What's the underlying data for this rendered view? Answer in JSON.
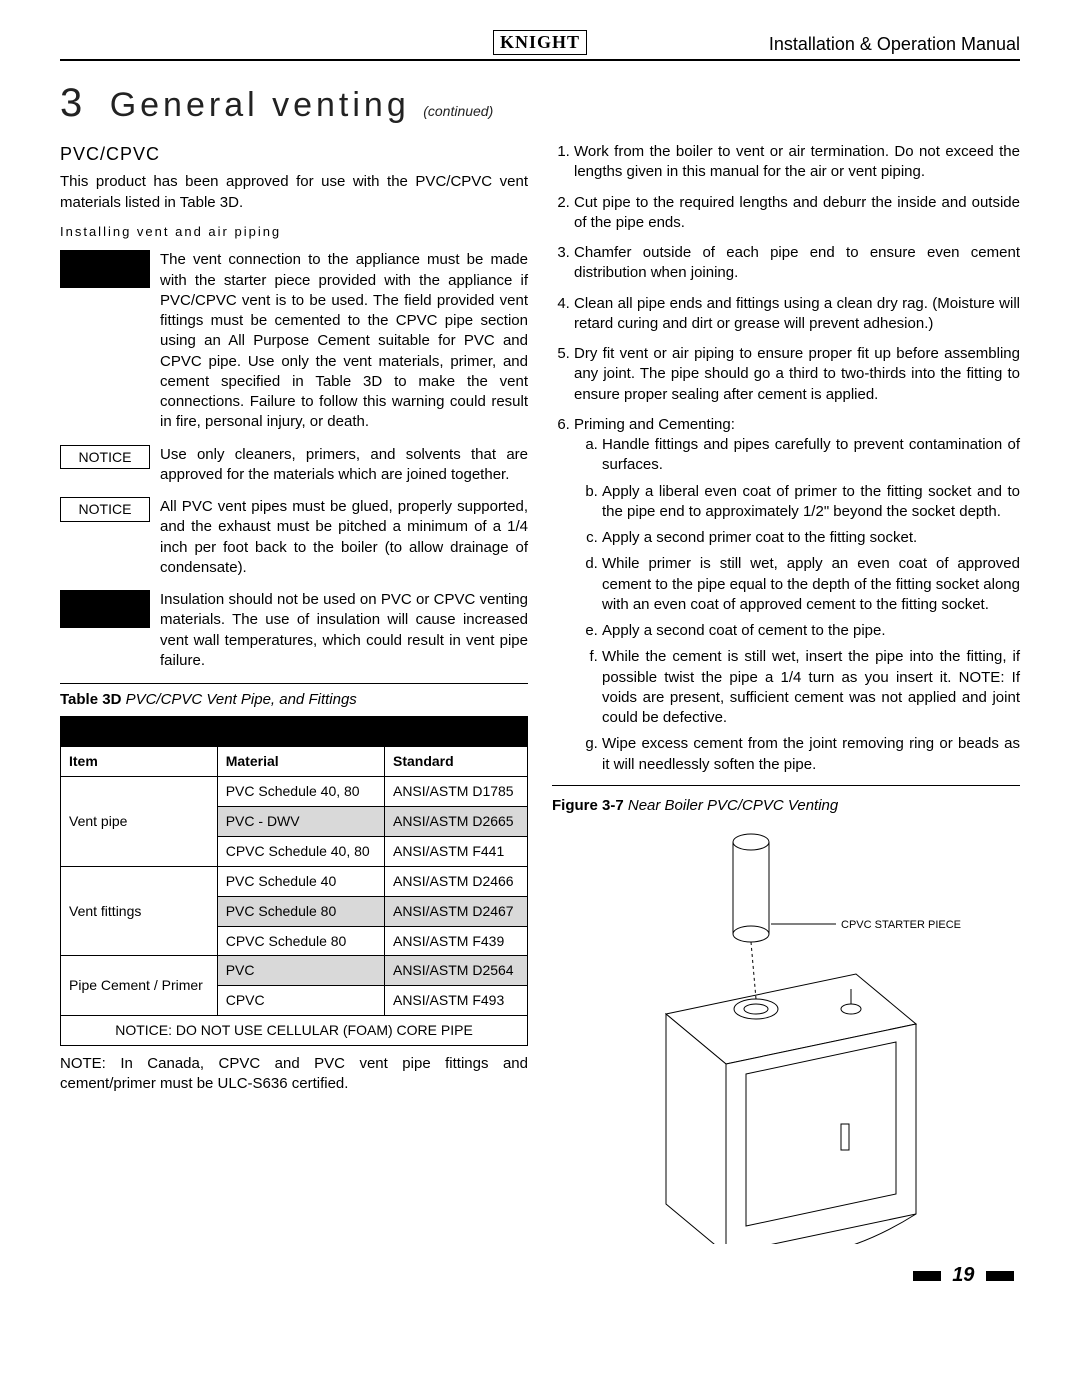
{
  "header": {
    "brand": "KNIGHT",
    "doc_title": "Installation & Operation Manual"
  },
  "section": {
    "number": "3",
    "title": "General venting",
    "continued": "(continued)"
  },
  "left": {
    "subhead": "PVC/CPVC",
    "intro": "This product has been approved for use with the PVC/CPVC vent materials listed in Table 3D.",
    "install_head": "Installing vent and air piping",
    "warn1": "The vent connection to the appliance must be made with the starter piece provided with the appliance if PVC/CPVC vent is to be used. The field provided vent fittings must be cemented to the CPVC pipe section using an All Purpose Cement suitable for PVC and CPVC pipe. Use only the vent materials, primer, and cement specified in Table 3D to make the vent connections. Failure to follow this warning could result in fire, personal injury, or death.",
    "notice1_label": "NOTICE",
    "notice1": "Use only cleaners, primers, and solvents that are approved for the materials which are joined together.",
    "notice2_label": "NOTICE",
    "notice2": "All PVC vent pipes must be glued, properly supported, and the exhaust must be pitched a minimum of a 1/4 inch per foot back to the boiler (to allow drainage of condensate).",
    "warn2": "Insulation should not be used on PVC or CPVC venting materials. The use of insulation will cause increased vent wall temperatures, which could result in vent pipe failure.",
    "table_title_bold": "Table 3D",
    "table_title_rest": " PVC/CPVC Vent Pipe, and Fittings",
    "table": {
      "columns": [
        "Item",
        "Material",
        "Standard"
      ],
      "groups": [
        {
          "item": "Vent pipe",
          "rows": [
            {
              "material": "PVC Schedule 40, 80",
              "standard": "ANSI/ASTM D1785",
              "shade": false
            },
            {
              "material": "PVC - DWV",
              "standard": "ANSI/ASTM D2665",
              "shade": true
            },
            {
              "material": "CPVC Schedule 40, 80",
              "standard": "ANSI/ASTM F441",
              "shade": false
            }
          ]
        },
        {
          "item": "Vent fittings",
          "rows": [
            {
              "material": "PVC Schedule 40",
              "standard": "ANSI/ASTM D2466",
              "shade": false
            },
            {
              "material": "PVC Schedule 80",
              "standard": "ANSI/ASTM D2467",
              "shade": true
            },
            {
              "material": "CPVC Schedule 80",
              "standard": "ANSI/ASTM F439",
              "shade": false
            }
          ]
        },
        {
          "item": "Pipe Cement / Primer",
          "rows": [
            {
              "material": "PVC",
              "standard": "ANSI/ASTM D2564",
              "shade": true
            },
            {
              "material": "CPVC",
              "standard": "ANSI/ASTM F493",
              "shade": false
            }
          ]
        }
      ],
      "notice_row": "NOTICE:  DO NOT USE CELLULAR (FOAM) CORE PIPE"
    },
    "canada_note": "NOTE: In Canada, CPVC and PVC vent pipe fittings and cement/primer must be ULC-S636 certified."
  },
  "right": {
    "steps": [
      "Work from the boiler to vent or air termination. Do not exceed the lengths given in this manual for the air or vent piping.",
      "Cut pipe to the required lengths and deburr the inside and outside of the pipe ends.",
      "Chamfer outside of each pipe end to ensure even cement distribution when joining.",
      "Clean all pipe ends and fittings using a clean dry rag. (Moisture will retard curing and dirt or grease will prevent adhesion.)",
      "Dry fit vent or air piping to ensure proper fit up before assembling any joint. The pipe should go a third to two-thirds into the fitting to ensure proper sealing after cement is applied.",
      "Priming and Cementing:"
    ],
    "substeps": [
      "Handle fittings and pipes carefully to prevent contamination of surfaces.",
      "Apply a liberal even coat of primer to the fitting socket and to the pipe end to approximately 1/2\" beyond the socket depth.",
      "Apply a second primer coat to the fitting socket.",
      "While primer is still wet, apply an even coat of approved cement to the pipe equal to the depth of the fitting socket along with an even coat of approved cement to the fitting socket.",
      "Apply a second coat of cement to the pipe.",
      "While the cement is still wet, insert the pipe into the fitting, if possible twist the pipe a 1/4 turn as you insert it. NOTE: If voids are present, sufficient cement was not applied and joint could be defective.",
      "Wipe excess cement from the joint removing ring or beads as it will needlessly soften the pipe."
    ],
    "fig_title_bold": "Figure 3-7",
    "fig_title_rest": " Near Boiler PVC/CPVC Venting",
    "fig_label": "CPVC STARTER PIECE"
  },
  "page_number": "19",
  "colors": {
    "text": "#000000",
    "shade": "#d9d9d9",
    "background": "#ffffff"
  }
}
